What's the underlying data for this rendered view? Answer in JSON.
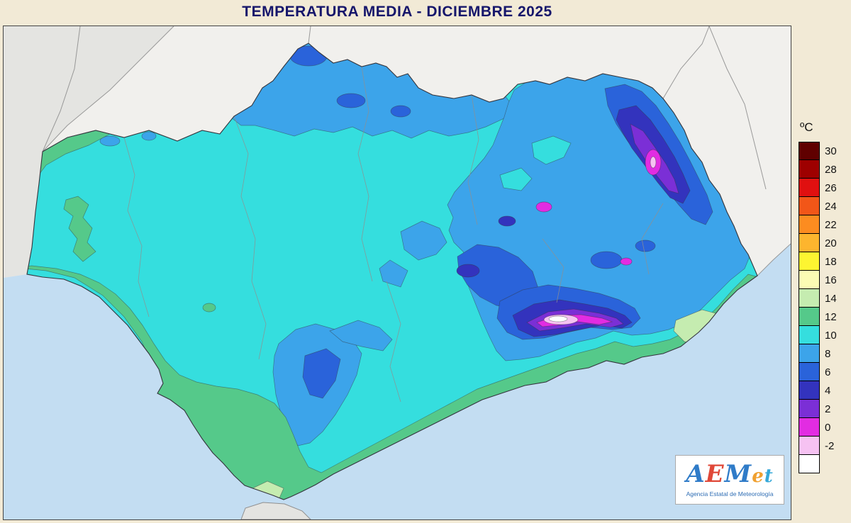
{
  "title": "TEMPERATURA MEDIA - DICIEMBRE 2025",
  "legend": {
    "unit": "ºC",
    "entries": [
      {
        "label": "30",
        "color": "#600000"
      },
      {
        "label": "28",
        "color": "#9e0000"
      },
      {
        "label": "26",
        "color": "#e01010"
      },
      {
        "label": "24",
        "color": "#f25618"
      },
      {
        "label": "22",
        "color": "#fc8c20"
      },
      {
        "label": "20",
        "color": "#fdb52e"
      },
      {
        "label": "18",
        "color": "#fdf531"
      },
      {
        "label": "16",
        "color": "#fbfbb4"
      },
      {
        "label": "14",
        "color": "#c5ecb0"
      },
      {
        "label": "12",
        "color": "#55c98a"
      },
      {
        "label": "10",
        "color": "#35dede"
      },
      {
        "label": "8",
        "color": "#3ca4ea"
      },
      {
        "label": "6",
        "color": "#2a63da"
      },
      {
        "label": "4",
        "color": "#3333bd"
      },
      {
        "label": "2",
        "color": "#7b2fd6"
      },
      {
        "label": "0",
        "color": "#e22ce2"
      },
      {
        "label": "-2",
        "color": "#f6c2f2"
      },
      {
        "label": "",
        "color": "#ffffff"
      }
    ]
  },
  "map": {
    "region": "Andalucía",
    "colors": {
      "sea": "#c3ddf2",
      "land": "#f1f0ed",
      "land_far": "#e4e4e1",
      "border": "#8f8f8f",
      "t14": "#c5ecb0",
      "t12": "#55c98a",
      "t10": "#35dede",
      "t8": "#3ca4ea",
      "t6": "#2a63da",
      "t4": "#3333bd",
      "t2": "#7b2fd6",
      "t0": "#e22ce2",
      "tm2": "#f6c2f2",
      "white": "#ffffff"
    }
  },
  "logo": {
    "letters": [
      {
        "ch": "A",
        "color": "#2f7bc8"
      },
      {
        "ch": "E",
        "color": "#e04838"
      },
      {
        "ch": "M",
        "color": "#2f7bc8"
      },
      {
        "ch": "e",
        "color": "#f0a030"
      },
      {
        "ch": "t",
        "color": "#35a8d8"
      }
    ],
    "subtitle": "Agencia Estatal de Meteorología"
  }
}
